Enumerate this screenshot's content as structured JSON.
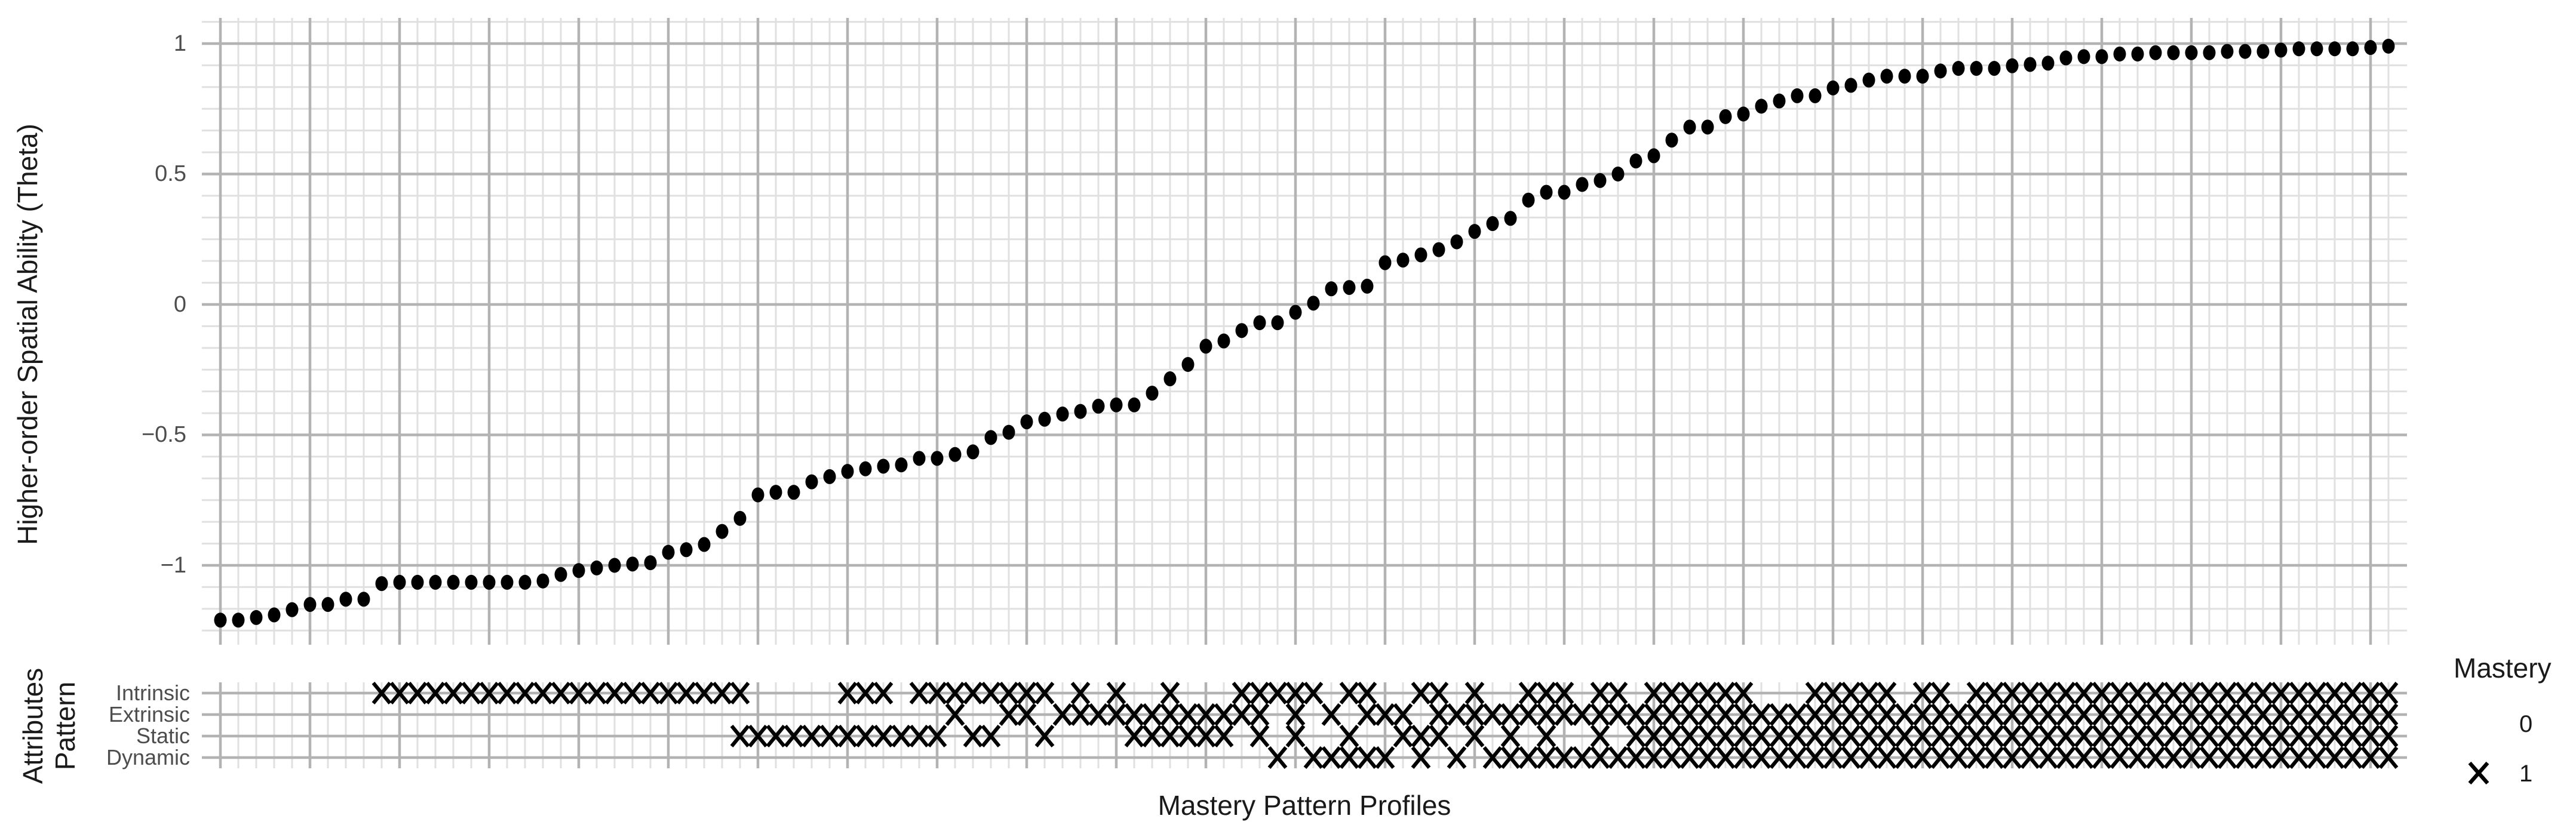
{
  "colors": {
    "background": "#ffffff",
    "point": "#000000",
    "mark": "#000000",
    "grid_minor": "#e0e0e0",
    "grid_major": "#b3b3b3",
    "axis_text": "#4d4d4d",
    "title_text": "#1a1a1a"
  },
  "chart_data": {
    "type": "scatter",
    "title": "",
    "xlabel": "Mastery Pattern Profiles",
    "ylabel": "Higher-order Spatial Ability (Theta)",
    "ylim": [
      -1.3,
      1.1
    ],
    "grid": "fine graph-paper grid: minor line per profile (x) and per 1/12 unit (y); major every 5 profiles and every 0.5 unit",
    "yticks": [
      {
        "value": 1,
        "label": "1"
      },
      {
        "value": 0.5,
        "label": "0.5"
      },
      {
        "value": 0,
        "label": "0"
      },
      {
        "value": -0.5,
        "label": "−0.5"
      },
      {
        "value": -1,
        "label": "−1"
      }
    ],
    "n_profiles": 122,
    "theta": [
      -1.21,
      -1.21,
      -1.2,
      -1.19,
      -1.17,
      -1.15,
      -1.15,
      -1.13,
      -1.13,
      -1.07,
      -1.065,
      -1.065,
      -1.065,
      -1.065,
      -1.065,
      -1.065,
      -1.065,
      -1.065,
      -1.06,
      -1.035,
      -1.02,
      -1.01,
      -1.0,
      -0.995,
      -0.99,
      -0.95,
      -0.94,
      -0.92,
      -0.87,
      -0.82,
      -0.73,
      -0.72,
      -0.72,
      -0.68,
      -0.66,
      -0.64,
      -0.63,
      -0.62,
      -0.615,
      -0.59,
      -0.59,
      -0.575,
      -0.565,
      -0.51,
      -0.49,
      -0.45,
      -0.44,
      -0.42,
      -0.41,
      -0.39,
      -0.385,
      -0.385,
      -0.34,
      -0.285,
      -0.23,
      -0.16,
      -0.14,
      -0.1,
      -0.07,
      -0.07,
      -0.03,
      0.005,
      0.06,
      0.065,
      0.07,
      0.16,
      0.17,
      0.19,
      0.21,
      0.24,
      0.28,
      0.31,
      0.33,
      0.4,
      0.43,
      0.43,
      0.46,
      0.475,
      0.5,
      0.55,
      0.57,
      0.63,
      0.68,
      0.68,
      0.72,
      0.73,
      0.76,
      0.78,
      0.8,
      0.8,
      0.83,
      0.84,
      0.86,
      0.875,
      0.875,
      0.875,
      0.895,
      0.905,
      0.905,
      0.905,
      0.915,
      0.92,
      0.925,
      0.945,
      0.95,
      0.95,
      0.96,
      0.96,
      0.965,
      0.965,
      0.965,
      0.965,
      0.97,
      0.97,
      0.97,
      0.975,
      0.98,
      0.98,
      0.98,
      0.98,
      0.985,
      0.99
    ],
    "attributes": [
      "Intrinsic",
      "Extrinsic",
      "Static",
      "Dynamic"
    ],
    "attr_panel_label_lines": [
      "Attributes",
      "Pattern"
    ],
    "patterns": [
      "0000",
      "0000",
      "0000",
      "0000",
      "0000",
      "0000",
      "0000",
      "0000",
      "0000",
      "1000",
      "1000",
      "1000",
      "1000",
      "1000",
      "1000",
      "1000",
      "1000",
      "1000",
      "1000",
      "1000",
      "1000",
      "1000",
      "1000",
      "1000",
      "1000",
      "1000",
      "1000",
      "1000",
      "1000",
      "1010",
      "0010",
      "0010",
      "0010",
      "0010",
      "0010",
      "1010",
      "1010",
      "1010",
      "0010",
      "1010",
      "1010",
      "1100",
      "1010",
      "1010",
      "1100",
      "1100",
      "1010",
      "0100",
      "1100",
      "0100",
      "1100",
      "0110",
      "0110",
      "1110",
      "0110",
      "0110",
      "0110",
      "1100",
      "1110",
      "1001",
      "1110",
      "1001",
      "0101",
      "1011",
      "1101",
      "0101",
      "0110",
      "1011",
      "1110",
      "0101",
      "1110",
      "0101",
      "0111",
      "1101",
      "1111",
      "1101",
      "0101",
      "1111",
      "1101",
      "0111",
      "1111",
      "1111",
      "1111",
      "1111",
      "1111",
      "1111",
      "0111",
      "0111",
      "0111",
      "1111",
      "1111",
      "1111",
      "1111",
      "1111",
      "0111",
      "1111",
      "1111",
      "0111",
      "1111",
      "1111",
      "1111",
      "1111",
      "1111",
      "1111",
      "1111",
      "1111",
      "1111",
      "1111",
      "1111",
      "1111",
      "1111",
      "1111",
      "1111",
      "1111",
      "1111",
      "1111",
      "1111",
      "1111",
      "1111",
      "1111",
      "1111",
      "1111"
    ],
    "legend": {
      "title": "Mastery",
      "items": [
        {
          "symbol": "none",
          "label": "0"
        },
        {
          "symbol": "x",
          "label": "1"
        }
      ]
    }
  }
}
